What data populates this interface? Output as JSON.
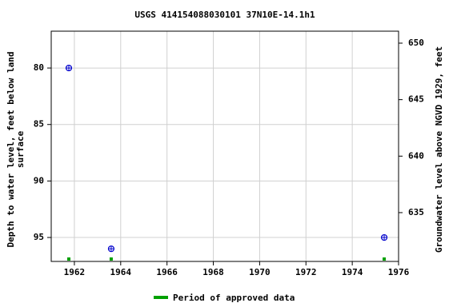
{
  "chart_data": {
    "type": "scatter",
    "title": "USGS 414154088030101 37N10E-14.1h1",
    "ylabel": [
      "Depth to water level, feet below land",
      "surface"
    ],
    "y2label": "Groundwater level above NGVD 1929, feet",
    "x": [
      1961.76,
      1963.59,
      1975.38
    ],
    "values": [
      80,
      96,
      95
    ],
    "color": "#0000cc",
    "approved": {
      "name": "Period of approved data",
      "color": "#00a000",
      "x": [
        1961.76,
        1963.59,
        1975.38
      ]
    },
    "xlim": [
      1961,
      1976
    ],
    "xticks": [
      1962,
      1964,
      1966,
      1968,
      1970,
      1972,
      1974,
      1976
    ],
    "ylim": [
      76.74,
      97.12
    ],
    "yticks": [
      80,
      85,
      90,
      95
    ],
    "y_inverted": true,
    "y2lim": [
      630.68,
      651.06
    ],
    "y2ticks": [
      635,
      640,
      645,
      650
    ],
    "grid": true
  }
}
